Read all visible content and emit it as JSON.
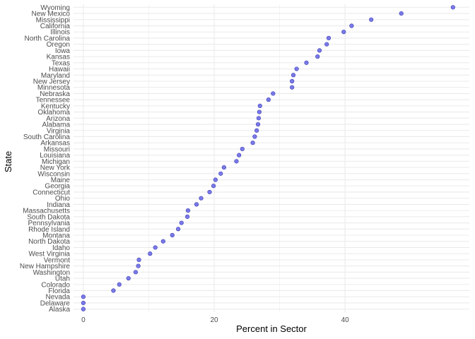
{
  "chart_data": {
    "type": "scatter",
    "xlabel": "Percent in  Sector",
    "ylabel": "State",
    "xlim": [
      -1.5,
      59
    ],
    "x_ticks": [
      0,
      20,
      40
    ],
    "x_tick_labels": [
      "0",
      "20",
      "40"
    ],
    "grid": true,
    "point_color": "#6b6be8",
    "point_stroke": "#3c3cb0",
    "grid_color": "#ebebeb",
    "categories": [
      "Wyoming",
      "New Mexico",
      "Mississippi",
      "California",
      "Illinois",
      "North Carolina",
      "Oregon",
      "Iowa",
      "Kansas",
      "Texas",
      "Hawaii",
      "Maryland",
      "New Jersey",
      "Minnesota",
      "Nebraska",
      "Tennessee",
      "Kentucky",
      "Oklahoma",
      "Arizona",
      "Alabama",
      "Virginia",
      "South Carolina",
      "Arkansas",
      "Missouri",
      "Louisiana",
      "Michigan",
      "New York",
      "Wisconsin",
      "Maine",
      "Georgia",
      "Connecticut",
      "Ohio",
      "Indiana",
      "Massachusetts",
      "South Dakota",
      "Pennsylvania",
      "Rhode Island",
      "Montana",
      "North Dakota",
      "Idaho",
      "West Virginia",
      "Vermont",
      "New Hampshire",
      "Washington",
      "Utah",
      "Colorado",
      "Florida",
      "Nevada",
      "Delaware",
      "Alaska"
    ],
    "values": [
      56.5,
      48.6,
      44.0,
      41.0,
      39.8,
      37.5,
      37.2,
      36.1,
      35.8,
      34.1,
      32.6,
      32.1,
      31.9,
      31.9,
      29.0,
      28.3,
      27.0,
      26.9,
      26.8,
      26.7,
      26.5,
      26.2,
      25.9,
      24.3,
      23.8,
      23.4,
      21.5,
      21.0,
      20.2,
      19.9,
      19.3,
      18.0,
      17.3,
      16.0,
      15.9,
      15.0,
      14.5,
      13.6,
      12.2,
      11.0,
      10.2,
      8.5,
      8.4,
      8.0,
      6.9,
      5.5,
      4.6,
      0.0,
      0.0,
      0.0
    ]
  }
}
